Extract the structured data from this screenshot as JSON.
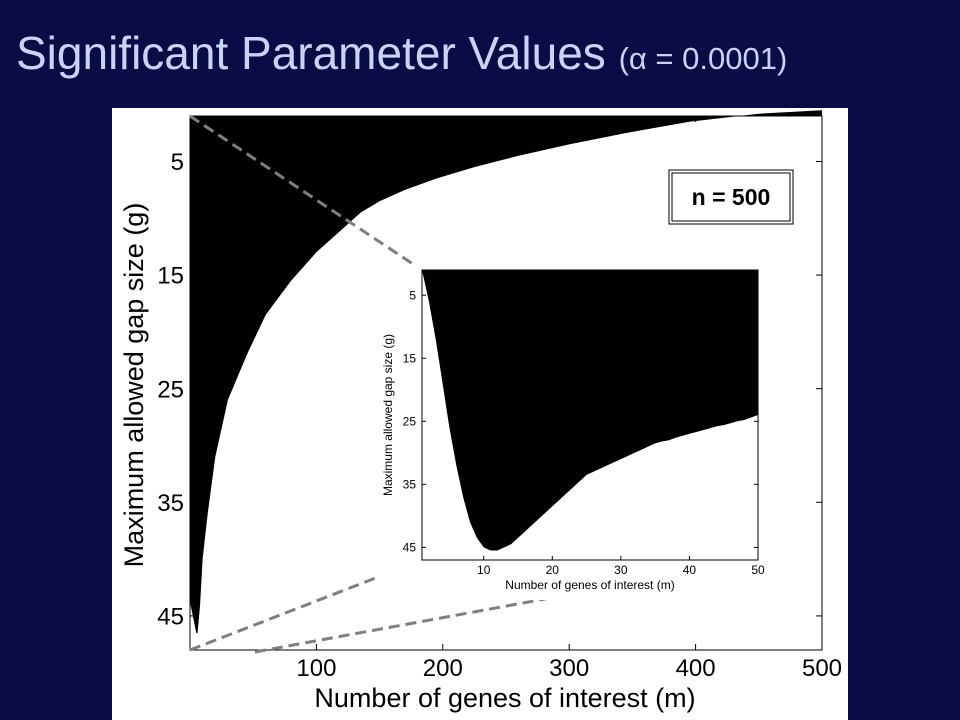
{
  "slide": {
    "title": "Significant Parameter Values",
    "subtitle": "(α = 0.0001)"
  },
  "colors": {
    "background": "#0b0b45",
    "title": "#c9d3f5",
    "significant_region": "#000000",
    "plot_area": "#ffffff",
    "zoom_lines": "#7f7f7f"
  },
  "chart_data": [
    {
      "id": "main",
      "type": "heatmap",
      "description_of_regions": "black = significant region, white = not significant",
      "xlabel": "Number of genes of interest (m)",
      "ylabel": "Maximum allowed gap size (g)",
      "xlim": [
        0,
        500
      ],
      "ylim": [
        1,
        48
      ],
      "y_inverted": true,
      "xticks": [
        100,
        200,
        300,
        400,
        500
      ],
      "yticks": [
        5,
        15,
        25,
        35,
        45
      ],
      "grid": false,
      "annotation": "n = 500",
      "annotation_position": "top-right",
      "left_boundary": {
        "x": [
          5,
          6,
          8,
          10,
          14,
          20,
          30,
          45,
          60,
          80,
          100,
          120,
          135
        ],
        "y": [
          1,
          46.5,
          44,
          40,
          36,
          31,
          26,
          22,
          18.5,
          15.5,
          13,
          11,
          9.5
        ]
      },
      "upper_boundary": {
        "x": [
          135,
          150,
          170,
          195,
          225,
          260,
          300,
          345,
          395,
          450,
          500
        ],
        "y": [
          9.5,
          8.5,
          7.5,
          6.5,
          5.5,
          4.5,
          3.5,
          2.5,
          1.5,
          0.8,
          0.5
        ]
      }
    },
    {
      "id": "inset",
      "type": "heatmap",
      "description_of_regions": "black = significant region, white = not significant",
      "xlabel": "Number of genes of interest (m)",
      "ylabel": "Maximum allowed gap size (g)",
      "xlim": [
        1,
        50
      ],
      "ylim": [
        1,
        47
      ],
      "y_inverted": true,
      "xticks": [
        10,
        20,
        30,
        40,
        50
      ],
      "yticks": [
        5,
        15,
        25,
        35,
        45
      ],
      "grid": false,
      "lower_boundary": {
        "x": [
          1,
          2,
          3,
          4,
          5,
          6,
          7,
          8,
          9,
          10,
          11,
          12,
          13,
          14,
          15,
          16,
          17,
          18,
          19,
          20,
          21,
          22,
          23,
          24,
          25,
          26,
          27,
          28,
          29,
          30,
          31,
          32,
          33,
          34,
          35,
          36,
          37,
          38,
          39,
          40,
          41,
          42,
          43,
          44,
          45,
          46,
          47,
          48,
          49,
          50
        ],
        "y": [
          1,
          6,
          12,
          19,
          26,
          32,
          37,
          41,
          43.5,
          45,
          45.5,
          45.5,
          45,
          44.5,
          43.5,
          42.5,
          41.5,
          40.5,
          39.5,
          38.5,
          37.5,
          36.5,
          35.5,
          34.5,
          33.5,
          33,
          32.5,
          32,
          31.5,
          31,
          30.5,
          30,
          29.5,
          29,
          28.5,
          28.2,
          28,
          27.6,
          27.3,
          27,
          26.7,
          26.4,
          26.1,
          25.8,
          25.6,
          25.3,
          25,
          24.8,
          24.4,
          24
        ]
      }
    }
  ]
}
